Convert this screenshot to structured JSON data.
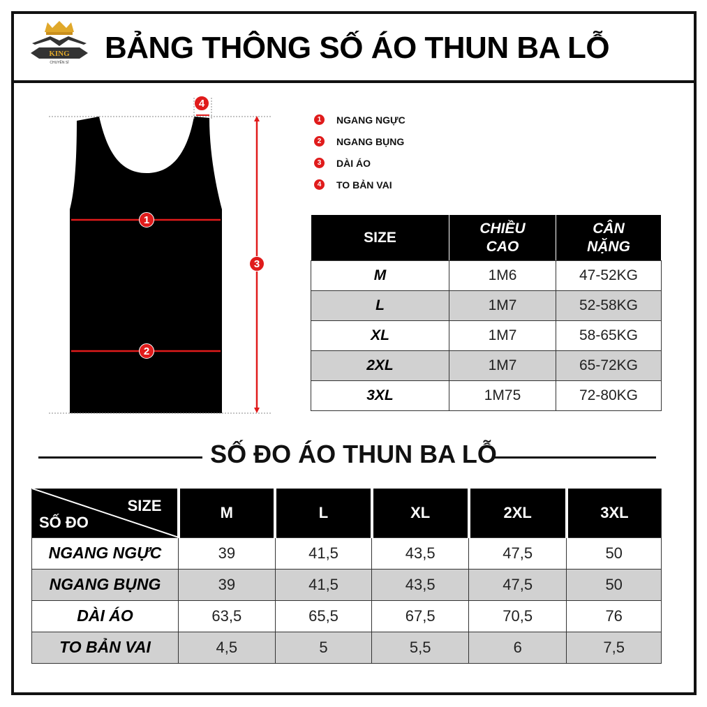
{
  "header": {
    "title": "BẢNG THÔNG SỐ ÁO THUN BA LỖ",
    "logo_text": "KING",
    "logo_subtext": "CHUYÊN SỈ"
  },
  "diagram": {
    "markers": [
      "1",
      "2",
      "3",
      "4"
    ],
    "accent": "#e01b1b"
  },
  "legend": [
    {
      "num": "1",
      "label": "NGANG NGỰC"
    },
    {
      "num": "2",
      "label": "NGANG BỤNG"
    },
    {
      "num": "3",
      "label": "DÀI ÁO"
    },
    {
      "num": "4",
      "label": "TO BẢN VAI"
    }
  ],
  "size_table": {
    "headers": [
      "SIZE",
      "CHIỀU CAO",
      "CÂN NẶNG"
    ],
    "rows": [
      [
        "M",
        "1M6",
        "47-52KG"
      ],
      [
        "L",
        "1M7",
        "52-58KG"
      ],
      [
        "XL",
        "1M7",
        "58-65KG"
      ],
      [
        "2XL",
        "1M7",
        "65-72KG"
      ],
      [
        "3XL",
        "1M75",
        "72-80KG"
      ]
    ]
  },
  "section_title": "SỐ ĐO ÁO THUN BA LỖ",
  "measure_table": {
    "corner_top": "SIZE",
    "corner_bottom": "SỐ ĐO",
    "sizes": [
      "M",
      "L",
      "XL",
      "2XL",
      "3XL"
    ],
    "rows": [
      {
        "label": "NGANG NGỰC",
        "values": [
          "39",
          "41,5",
          "43,5",
          "47,5",
          "50"
        ]
      },
      {
        "label": "NGANG BỤNG",
        "values": [
          "39",
          "41,5",
          "43,5",
          "47,5",
          "50"
        ]
      },
      {
        "label": "DÀI ÁO",
        "values": [
          "63,5",
          "65,5",
          "67,5",
          "70,5",
          "76"
        ]
      },
      {
        "label": "TO BẢN VAI",
        "values": [
          "4,5",
          "5",
          "5,5",
          "6",
          "7,5"
        ]
      }
    ]
  }
}
